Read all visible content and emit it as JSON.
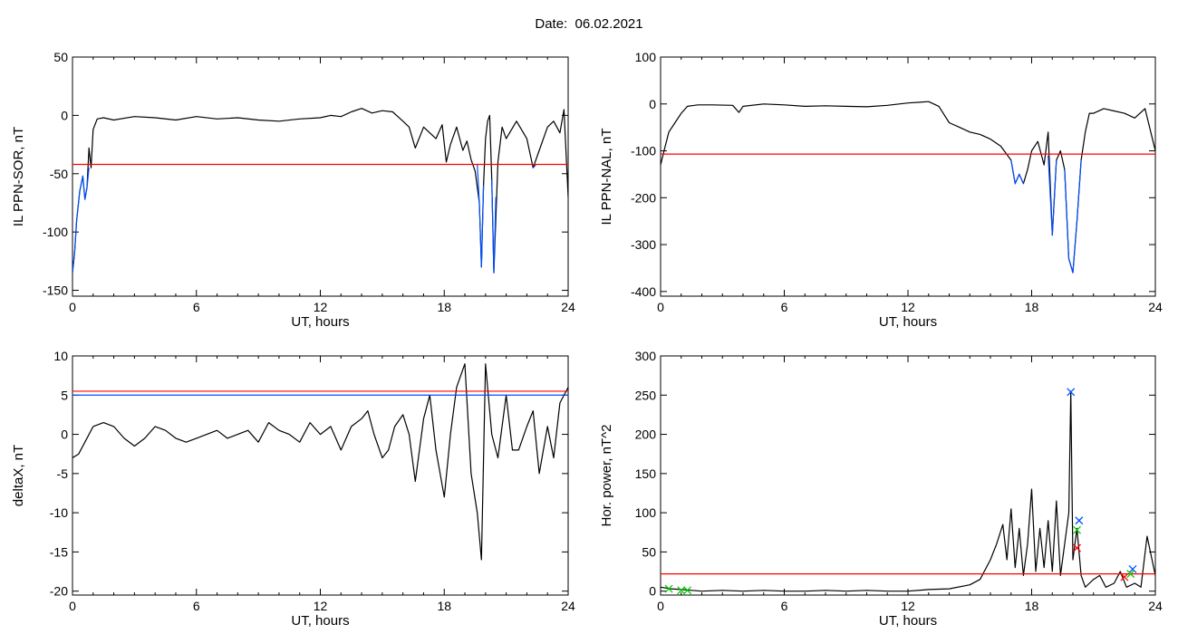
{
  "title": "Date:  06.02.2021",
  "colors": {
    "black": "#000000",
    "threshold": "#ff0000",
    "blue": "#0050ff",
    "green": "#00cc00"
  },
  "chart_data": [
    {
      "type": "line",
      "ylabel": "IL PPN-SOR, nT",
      "xlabel": "UT, hours",
      "xlim": [
        0,
        24
      ],
      "ylim": [
        -155,
        50
      ],
      "xticks": [
        0,
        6,
        12,
        18,
        24
      ],
      "yticks": [
        50,
        0,
        -50,
        -100,
        -150
      ],
      "threshold": {
        "value": -42,
        "color": "#ff0000"
      },
      "series": [
        {
          "color": "#000000",
          "x": [
            0,
            0.1,
            0.2,
            0.35,
            0.5,
            0.6,
            0.7,
            0.8,
            0.9,
            1.0,
            1.2,
            1.5,
            2,
            3,
            4,
            5,
            6,
            7,
            8,
            9,
            10,
            11,
            12,
            12.5,
            13,
            13.5,
            14,
            14.5,
            15,
            15.5,
            16,
            16.3,
            16.6,
            17,
            17.3,
            17.6,
            17.9,
            18.1,
            18.3,
            18.6,
            18.9,
            19.1,
            19.3,
            19.5,
            19.7,
            19.8,
            19.9,
            20.0,
            20.1,
            20.2,
            20.3,
            20.4,
            20.6,
            20.8,
            21,
            21.5,
            22,
            22.3,
            22.6,
            23,
            23.3,
            23.6,
            23.8,
            24
          ],
          "y": [
            -135,
            -118,
            -90,
            -65,
            -52,
            -72,
            -62,
            -28,
            -45,
            -12,
            -3,
            -2,
            -4,
            -1,
            -2,
            -4,
            -1,
            -3,
            -2,
            -4,
            -5,
            -3,
            -2,
            0,
            -1,
            3,
            6,
            2,
            4,
            3,
            -5,
            -10,
            -28,
            -10,
            -15,
            -20,
            -8,
            -40,
            -25,
            -10,
            -30,
            -22,
            -38,
            -48,
            -75,
            -130,
            -60,
            -20,
            -5,
            0,
            -55,
            -135,
            -40,
            -10,
            -20,
            -5,
            -20,
            -45,
            -30,
            -10,
            -5,
            -15,
            5,
            -70
          ]
        },
        {
          "color": "#0050ff",
          "x": [
            0,
            0.1,
            0.2,
            0.35,
            0.5,
            0.6,
            0.7,
            0.8
          ],
          "y": [
            -135,
            -118,
            -90,
            -65,
            -52,
            -72,
            -62,
            -45
          ]
        },
        {
          "color": "#0050ff",
          "x": [
            19.6,
            19.7,
            19.8,
            19.9
          ],
          "y": [
            -42,
            -75,
            -130,
            -60
          ]
        },
        {
          "color": "#0050ff",
          "x": [
            20.3,
            20.4,
            20.5
          ],
          "y": [
            -55,
            -135,
            -70
          ]
        },
        {
          "color": "#0050ff",
          "x": [
            22.3,
            22.45
          ],
          "y": [
            -45,
            -42
          ]
        }
      ]
    },
    {
      "type": "line",
      "ylabel": "IL PPN-NAL, nT",
      "xlabel": "UT, hours",
      "xlim": [
        0,
        24
      ],
      "ylim": [
        -410,
        100
      ],
      "xticks": [
        0,
        6,
        12,
        18,
        24
      ],
      "yticks": [
        100,
        0,
        -100,
        -200,
        -300,
        -400
      ],
      "threshold": {
        "value": -107,
        "color": "#ff0000"
      },
      "series": [
        {
          "color": "#000000",
          "x": [
            0,
            0.2,
            0.4,
            0.7,
            1.0,
            1.3,
            1.8,
            2.5,
            3.5,
            3.8,
            4,
            5,
            6,
            7,
            8,
            9,
            10,
            11,
            12,
            13,
            13.5,
            14,
            14.5,
            15,
            15.5,
            16,
            16.5,
            17,
            17.2,
            17.4,
            17.6,
            17.8,
            18.0,
            18.3,
            18.6,
            18.8,
            19.0,
            19.2,
            19.4,
            19.6,
            19.8,
            20.0,
            20.2,
            20.4,
            20.6,
            20.8,
            21,
            21.5,
            22,
            22.5,
            23,
            23.5,
            24
          ],
          "y": [
            -130,
            -95,
            -60,
            -40,
            -20,
            -5,
            -2,
            -2,
            -3,
            -18,
            -5,
            0,
            -2,
            -5,
            -4,
            -5,
            -6,
            -3,
            2,
            5,
            -5,
            -40,
            -50,
            -60,
            -65,
            -75,
            -90,
            -120,
            -170,
            -150,
            -170,
            -140,
            -100,
            -80,
            -130,
            -60,
            -280,
            -120,
            -100,
            -140,
            -330,
            -360,
            -250,
            -120,
            -60,
            -20,
            -20,
            -10,
            -15,
            -20,
            -30,
            -10,
            -100
          ]
        },
        {
          "color": "#0050ff",
          "x": [
            17.0,
            17.2,
            17.4,
            17.6
          ],
          "y": [
            -120,
            -170,
            -150,
            -170
          ]
        },
        {
          "color": "#0050ff",
          "x": [
            18.8,
            19.0,
            19.2
          ],
          "y": [
            -110,
            -280,
            -120
          ]
        },
        {
          "color": "#0050ff",
          "x": [
            19.6,
            19.8,
            20.0,
            20.2,
            20.4
          ],
          "y": [
            -140,
            -330,
            -360,
            -250,
            -120
          ]
        }
      ]
    },
    {
      "type": "line",
      "ylabel": "deltaX, nT",
      "xlabel": "UT, hours",
      "xlim": [
        0,
        24
      ],
      "ylim": [
        -20.5,
        10
      ],
      "xticks": [
        0,
        6,
        12,
        18,
        24
      ],
      "yticks": [
        10,
        5,
        0,
        -5,
        -10,
        -15,
        -20
      ],
      "thresholds": [
        {
          "value": 5.5,
          "color": "#ff0000"
        },
        {
          "value": 5.0,
          "color": "#0050ff"
        }
      ],
      "series": [
        {
          "color": "#000000",
          "x": [
            0,
            0.3,
            0.6,
            1,
            1.5,
            2,
            2.5,
            3,
            3.5,
            4,
            4.5,
            5,
            5.5,
            6,
            6.5,
            7,
            7.5,
            8,
            8.5,
            9,
            9.5,
            10,
            10.5,
            11,
            11.5,
            12,
            12.5,
            13,
            13.5,
            14,
            14.3,
            14.6,
            15,
            15.3,
            15.6,
            16,
            16.3,
            16.6,
            17,
            17.3,
            17.6,
            18,
            18.3,
            18.6,
            19,
            19.3,
            19.6,
            19.8,
            20,
            20.3,
            20.6,
            21,
            21.3,
            21.6,
            22,
            22.3,
            22.6,
            23,
            23.3,
            23.6,
            24
          ],
          "y": [
            -3,
            -2.5,
            -1,
            1,
            1.5,
            1,
            -0.5,
            -1.5,
            -0.5,
            1,
            0.5,
            -0.5,
            -1,
            -0.5,
            0,
            0.5,
            -0.5,
            0,
            0.5,
            -1,
            1.5,
            0.5,
            0,
            -1,
            1.5,
            0,
            1,
            -2,
            1,
            2,
            3,
            0,
            -3,
            -2,
            1,
            2.5,
            0,
            -6,
            2,
            5,
            -2,
            -8,
            0,
            6,
            9,
            -5,
            -10,
            -16,
            9,
            0,
            -3,
            5,
            -2,
            -2,
            1,
            3,
            -5,
            1,
            -3,
            4,
            6
          ]
        }
      ]
    },
    {
      "type": "line",
      "ylabel": "Hor. power, nT^2",
      "xlabel": "UT, hours",
      "xlim": [
        0,
        24
      ],
      "ylim": [
        -5,
        300
      ],
      "xticks": [
        0,
        6,
        12,
        18,
        24
      ],
      "yticks": [
        300,
        250,
        200,
        150,
        100,
        50,
        0
      ],
      "threshold": {
        "value": 22,
        "color": "#ff0000"
      },
      "series": [
        {
          "color": "#000000",
          "x": [
            0,
            0.5,
            1,
            1.5,
            2,
            3,
            4,
            5,
            6,
            7,
            8,
            9,
            10,
            11,
            12,
            13,
            14,
            15,
            15.5,
            16,
            16.3,
            16.6,
            16.8,
            17,
            17.2,
            17.4,
            17.6,
            17.8,
            18,
            18.2,
            18.4,
            18.6,
            18.8,
            19,
            19.2,
            19.4,
            19.6,
            19.8,
            19.9,
            20,
            20.2,
            20.4,
            20.6,
            20.8,
            21,
            21.3,
            21.6,
            22,
            22.3,
            22.6,
            23,
            23.3,
            23.6,
            24
          ],
          "y": [
            5,
            3,
            2,
            1,
            0,
            1,
            0,
            1,
            0,
            0,
            1,
            0,
            1,
            0,
            0,
            2,
            3,
            8,
            15,
            40,
            60,
            85,
            40,
            105,
            30,
            80,
            20,
            60,
            130,
            25,
            80,
            30,
            90,
            25,
            115,
            20,
            60,
            100,
            255,
            40,
            80,
            20,
            5,
            10,
            15,
            20,
            5,
            10,
            25,
            5,
            10,
            5,
            70,
            20
          ]
        }
      ],
      "markers": [
        {
          "x": 19.9,
          "y": 254,
          "color": "#0050ff",
          "symbol": "x"
        },
        {
          "x": 20.3,
          "y": 90,
          "color": "#0050ff",
          "symbol": "x"
        },
        {
          "x": 20.2,
          "y": 78,
          "color": "#00cc00",
          "symbol": "x"
        },
        {
          "x": 20.2,
          "y": 55,
          "color": "#ff0000",
          "symbol": "x"
        },
        {
          "x": 22.9,
          "y": 28,
          "color": "#0050ff",
          "symbol": "x"
        },
        {
          "x": 22.8,
          "y": 22,
          "color": "#00cc00",
          "symbol": "x"
        },
        {
          "x": 22.5,
          "y": 18,
          "color": "#ff0000",
          "symbol": "x"
        },
        {
          "x": 0.4,
          "y": 3,
          "color": "#00cc00",
          "symbol": "x"
        },
        {
          "x": 1.0,
          "y": 1,
          "color": "#00cc00",
          "symbol": "x"
        },
        {
          "x": 1.3,
          "y": 1,
          "color": "#00cc00",
          "symbol": "x"
        }
      ]
    }
  ]
}
